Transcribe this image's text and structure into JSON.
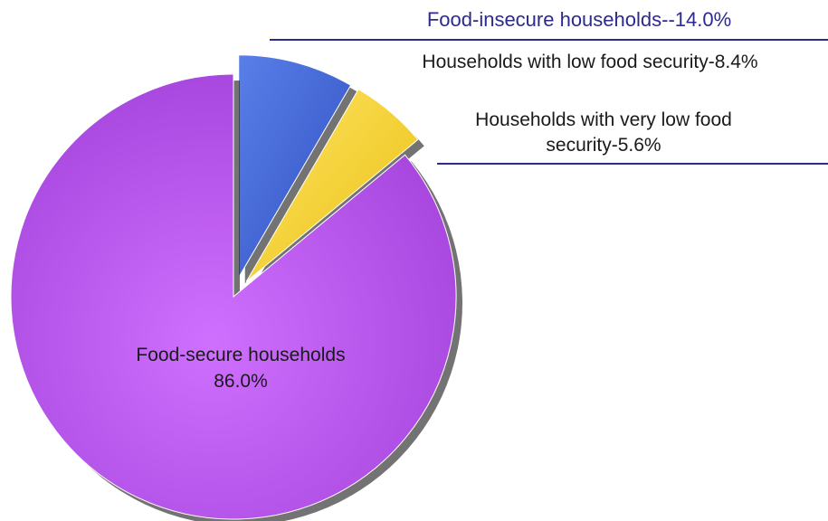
{
  "chart_data": {
    "type": "pie",
    "title": "",
    "slices": [
      {
        "label": "Food-secure households",
        "value_label": "86.0%",
        "value": 86.0,
        "color": "#b24ee6",
        "exploded": false
      },
      {
        "label": "Households with low food security-8.4%",
        "value": 8.4,
        "color": "#3f63d4",
        "exploded": true
      },
      {
        "label_lines": [
          "Households with very low food",
          "security-5.6%"
        ],
        "value": 5.6,
        "color": "#f6d232",
        "exploded": true
      }
    ],
    "group": {
      "label": "Food-insecure households--14.0%",
      "value": 14.0,
      "color": "#2c2a8c",
      "members": [
        1,
        2
      ]
    }
  }
}
